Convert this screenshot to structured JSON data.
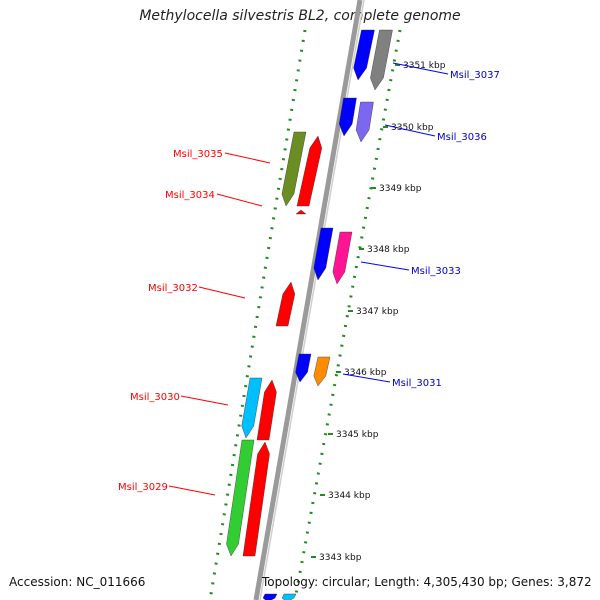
{
  "title": "Methylocella silvestris BL2, complete genome",
  "footer": {
    "accession": "Accession: NC_011666",
    "topology": "Topology: circular; Length: 4,305,430 bp; Genes: 3,872"
  },
  "colors": {
    "red": "#ff0000",
    "blue": "#0000ff",
    "gray": "#808080",
    "slate": "#7b68ee",
    "olive": "#6b8e23",
    "magenta": "#ff1493",
    "orange": "#ff8c00",
    "cyan": "#00bfff",
    "green": "#32cd32",
    "tick_green": "#228b22",
    "backbone": "#909090"
  },
  "ticks": [
    {
      "label": "3351 kbp"
    },
    {
      "label": "3350 kbp"
    },
    {
      "label": "3349 kbp"
    },
    {
      "label": "3348 kbp"
    },
    {
      "label": "3347 kbp"
    },
    {
      "label": "3346 kbp"
    },
    {
      "label": "3345 kbp"
    },
    {
      "label": "3344 kbp"
    },
    {
      "label": "3343 kbp"
    }
  ],
  "left_labels": [
    {
      "text": "Msil_3035"
    },
    {
      "text": "Msil_3034"
    },
    {
      "text": "Msil_3032"
    },
    {
      "text": "Msil_3030"
    },
    {
      "text": "Msil_3029"
    }
  ],
  "right_labels": [
    {
      "text": "Msil_3037"
    },
    {
      "text": "Msil_3036"
    },
    {
      "text": "Msil_3033"
    },
    {
      "text": "Msil_3031"
    }
  ]
}
